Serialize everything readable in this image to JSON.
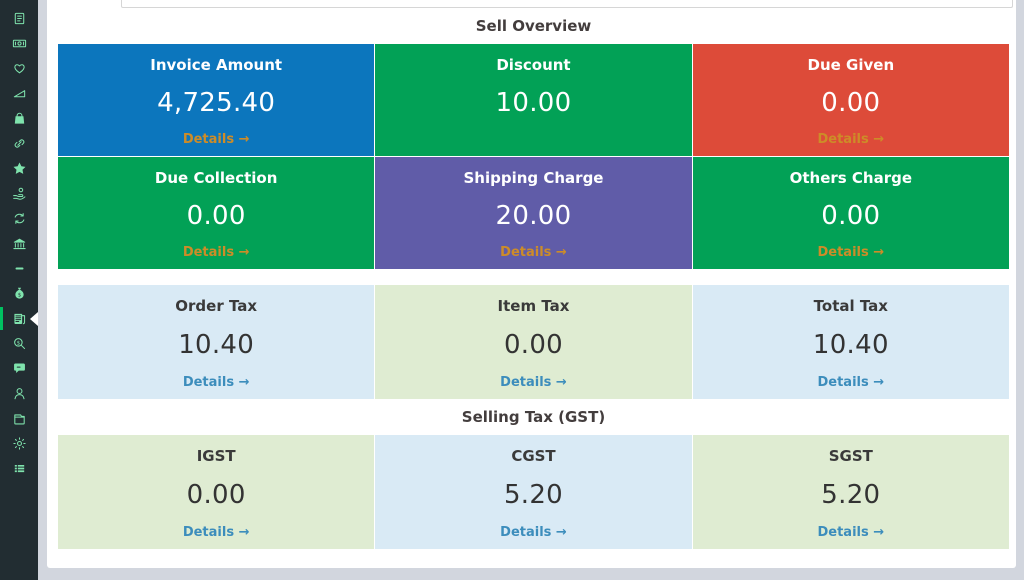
{
  "colors": {
    "page_background": "#d2d6de",
    "panel_background": "#ffffff",
    "sidebar_background": "#222d32",
    "sidebar_icon": "#7fe3ad",
    "active_indicator_green": "#00c161",
    "card_blue": "#0c76bd",
    "card_green": "#02a156",
    "card_red": "#dd4b39",
    "card_purple": "#605ca8",
    "card_light_blue": "#d9eaf5",
    "card_light_green": "#dfecd2",
    "details_orange": "#cd8c28",
    "details_blue": "#3c8dbc"
  },
  "sidebar": {
    "items": [
      {
        "icon": "invoice-list-icon",
        "active": false
      },
      {
        "icon": "cash-icon",
        "active": false
      },
      {
        "icon": "heart-icon",
        "active": false
      },
      {
        "icon": "ramp-icon",
        "active": false
      },
      {
        "icon": "shopping-bag-icon",
        "active": false
      },
      {
        "icon": "link-icon",
        "active": false
      },
      {
        "icon": "star-icon",
        "active": false
      },
      {
        "icon": "hand-coin-icon",
        "active": false
      },
      {
        "icon": "money-exchange-icon",
        "active": false
      },
      {
        "icon": "bank-icon",
        "active": false
      },
      {
        "icon": "dash-icon",
        "active": false
      },
      {
        "icon": "money-bag-icon",
        "active": false
      },
      {
        "icon": "report-icon",
        "active": true
      },
      {
        "icon": "search-money-icon",
        "active": false
      },
      {
        "icon": "chat-icon",
        "active": false
      },
      {
        "icon": "user-icon",
        "active": false
      },
      {
        "icon": "archive-icon",
        "active": false
      },
      {
        "icon": "gear-icon",
        "active": false
      },
      {
        "icon": "list-icon",
        "active": false
      }
    ]
  },
  "sections": [
    {
      "name": "sell-overview",
      "title": "Sell Overview",
      "rows": [
        {
          "theme": "dark",
          "cards": [
            {
              "label": "Invoice Amount",
              "value": "4,725.40",
              "bg": "#0c76bd",
              "details": "Details →"
            },
            {
              "label": "Discount",
              "value": "10.00",
              "bg": "#02a156",
              "details": null
            },
            {
              "label": "Due Given",
              "value": "0.00",
              "bg": "#dd4b39",
              "details": "Details →"
            }
          ]
        },
        {
          "theme": "dark",
          "cards": [
            {
              "label": "Due Collection",
              "value": "0.00",
              "bg": "#02a156",
              "details": "Details →"
            },
            {
              "label": "Shipping Charge",
              "value": "20.00",
              "bg": "#605ca8",
              "details": "Details →"
            },
            {
              "label": "Others Charge",
              "value": "0.00",
              "bg": "#02a156",
              "details": "Details →"
            }
          ]
        }
      ]
    },
    {
      "name": "tax-summary",
      "title": null,
      "rows": [
        {
          "theme": "light",
          "cards": [
            {
              "label": "Order Tax",
              "value": "10.40",
              "bg": "#d9eaf5",
              "details": "Details →"
            },
            {
              "label": "Item Tax",
              "value": "0.00",
              "bg": "#dfecd2",
              "details": "Details →"
            },
            {
              "label": "Total Tax",
              "value": "10.40",
              "bg": "#d9eaf5",
              "details": "Details →"
            }
          ]
        }
      ]
    },
    {
      "name": "selling-tax-gst",
      "title": "Selling Tax (GST)",
      "rows": [
        {
          "theme": "light",
          "cards": [
            {
              "label": "IGST",
              "value": "0.00",
              "bg": "#dfecd2",
              "details": "Details →"
            },
            {
              "label": "CGST",
              "value": "5.20",
              "bg": "#d9eaf5",
              "details": "Details →"
            },
            {
              "label": "SGST",
              "value": "5.20",
              "bg": "#dfecd2",
              "details": "Details →"
            }
          ]
        }
      ]
    }
  ]
}
